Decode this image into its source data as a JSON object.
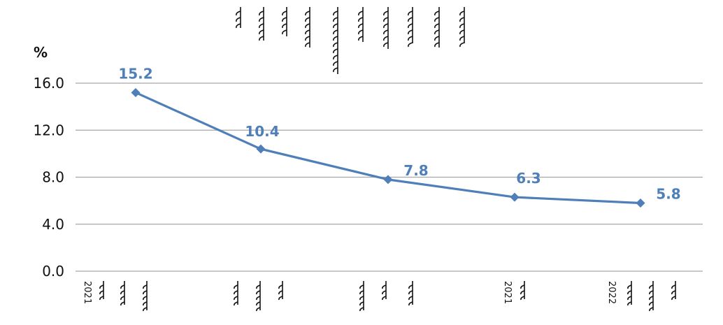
{
  "chart_data": {
    "type": "line",
    "title": "",
    "ylabel": "%",
    "xlabel": "",
    "ylim": [
      0,
      16
    ],
    "yticks": [
      "0.0",
      "4.0",
      "8.0",
      "12.0",
      "16.0"
    ],
    "grid": true,
    "categories": [
      "2021",
      "",
      "",
      "2021",
      "2022"
    ],
    "series": [
      {
        "values": [
          15.2,
          10.4,
          7.8,
          6.3,
          5.8
        ],
        "labels": [
          "15.2",
          "10.4",
          "7.8",
          "6.3",
          "5.8"
        ],
        "color": "#4f7fb9",
        "marker": "diamond"
      }
    ]
  }
}
